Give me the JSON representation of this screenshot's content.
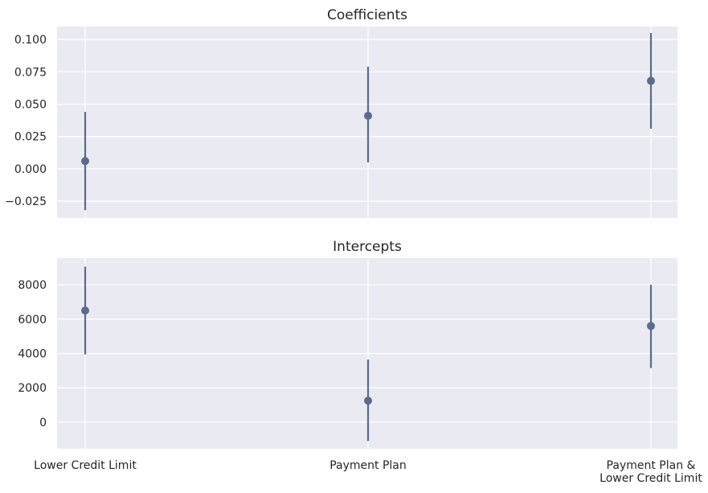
{
  "chart_data": [
    {
      "type": "scatter",
      "title": "Coefficients",
      "categories": [
        "Lower Credit Limit",
        "Payment Plan",
        "Payment Plan &\nLower Credit Limit"
      ],
      "series": [
        {
          "values": [
            0.006,
            0.041,
            0.068
          ],
          "lower": [
            -0.032,
            0.005,
            0.031
          ],
          "upper": [
            0.044,
            0.079,
            0.105
          ]
        }
      ],
      "yticks": [
        -0.025,
        0.0,
        0.025,
        0.05,
        0.075,
        0.1
      ],
      "ytick_labels": [
        "−0.025",
        "0.000",
        "0.025",
        "0.050",
        "0.075",
        "0.100"
      ],
      "ylim": [
        -0.038,
        0.11
      ],
      "grid": true
    },
    {
      "type": "scatter",
      "title": "Intercepts",
      "categories": [
        "Lower Credit Limit",
        "Payment Plan",
        "Payment Plan &\nLower Credit Limit"
      ],
      "series": [
        {
          "values": [
            6500,
            1250,
            5600
          ],
          "lower": [
            3950,
            -1100,
            3150
          ],
          "upper": [
            9050,
            3650,
            8000
          ]
        }
      ],
      "yticks": [
        0,
        2000,
        4000,
        6000,
        8000
      ],
      "ytick_labels": [
        "0",
        "2000",
        "4000",
        "6000",
        "8000"
      ],
      "ylim": [
        -1550,
        9550
      ],
      "grid": true
    }
  ],
  "x_tick_labels": [
    "Lower Credit Limit",
    "Payment Plan",
    [
      "Payment Plan &",
      "Lower Credit Limit"
    ]
  ]
}
